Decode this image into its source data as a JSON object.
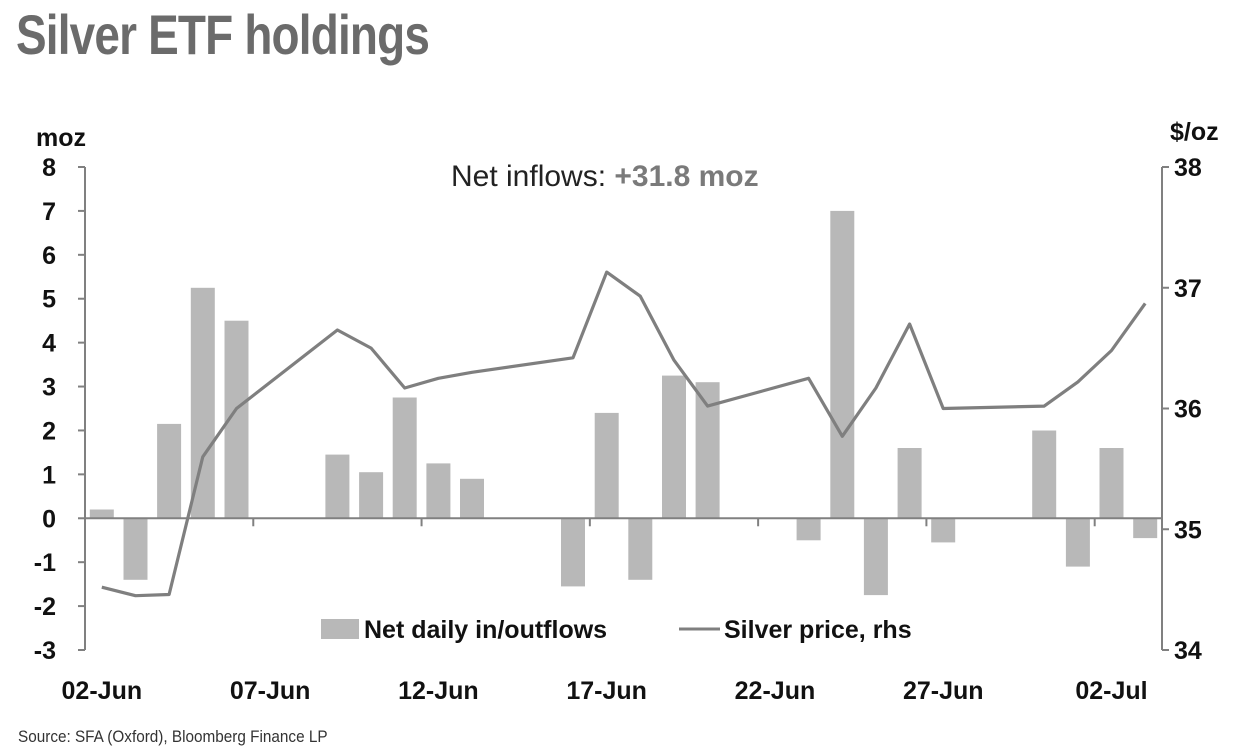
{
  "title": "Silver ETF holdings",
  "source": "Source: SFA (Oxford), Bloomberg Finance LP",
  "annotation": {
    "prefix": "Net inflows: ",
    "value": "+31.8 moz"
  },
  "colors": {
    "bars": "#b8b8b8",
    "line": "#7f7f7f",
    "axis": "#808080",
    "text": "#111111"
  },
  "chart_data": {
    "type": "bar",
    "left_axis": {
      "unit_label": "moz",
      "ylim": [
        -3,
        8
      ],
      "ticks": [
        "8",
        "7",
        "6",
        "5",
        "4",
        "3",
        "2",
        "1",
        "0",
        "-1",
        "-2",
        "-3"
      ]
    },
    "right_axis": {
      "unit_label": "$/oz",
      "ylim": [
        34,
        38
      ],
      "ticks": [
        "38",
        "37",
        "36",
        "35",
        "34"
      ]
    },
    "x_tick_labels": [
      "02-Jun",
      "07-Jun",
      "12-Jun",
      "17-Jun",
      "22-Jun",
      "27-Jun",
      "02-Jul"
    ],
    "legend": {
      "bars": "Net daily in/outflows",
      "line": "Silver price, rhs"
    },
    "bar_series": {
      "name": "Net daily in/outflows",
      "dates": [
        "02-Jun",
        "03-Jun",
        "04-Jun",
        "05-Jun",
        "06-Jun",
        "07-Jun",
        "08-Jun",
        "09-Jun",
        "10-Jun",
        "11-Jun",
        "12-Jun",
        "13-Jun",
        "14-Jun",
        "15-Jun",
        "16-Jun",
        "17-Jun",
        "18-Jun",
        "19-Jun",
        "20-Jun",
        "21-Jun",
        "22-Jun",
        "23-Jun",
        "24-Jun",
        "25-Jun",
        "26-Jun",
        "27-Jun",
        "28-Jun",
        "29-Jun",
        "30-Jun",
        "01-Jul",
        "02-Jul",
        "03-Jul"
      ],
      "values": [
        0.2,
        -1.4,
        2.15,
        5.25,
        4.5,
        0,
        0,
        1.45,
        1.05,
        2.75,
        1.25,
        0.9,
        0,
        0,
        -1.55,
        2.4,
        -1.4,
        3.25,
        3.1,
        0,
        0,
        -0.5,
        7.0,
        -1.75,
        1.6,
        -0.55,
        0,
        0,
        2.0,
        -1.1,
        1.6,
        -0.45
      ]
    },
    "line_series": {
      "name": "Silver price, rhs",
      "dates": [
        "02-Jun",
        "03-Jun",
        "04-Jun",
        "05-Jun",
        "06-Jun",
        "09-Jun",
        "10-Jun",
        "11-Jun",
        "12-Jun",
        "13-Jun",
        "16-Jun",
        "17-Jun",
        "18-Jun",
        "19-Jun",
        "20-Jun",
        "23-Jun",
        "24-Jun",
        "25-Jun",
        "26-Jun",
        "27-Jun",
        "30-Jun",
        "01-Jul",
        "02-Jul",
        "03-Jul"
      ],
      "values": [
        34.52,
        34.45,
        34.46,
        35.6,
        36.0,
        36.65,
        36.5,
        36.17,
        36.25,
        36.3,
        36.42,
        37.13,
        36.93,
        36.4,
        36.02,
        36.25,
        35.77,
        36.17,
        36.7,
        36.0,
        36.02,
        36.22,
        36.48,
        36.87
      ]
    }
  }
}
